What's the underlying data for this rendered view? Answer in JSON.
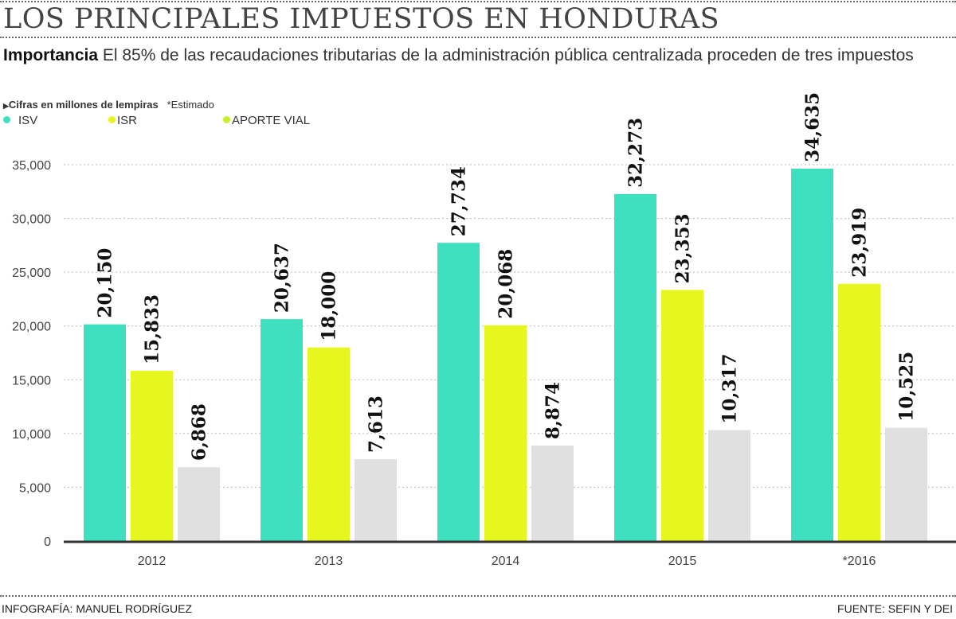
{
  "header": {
    "title": "LOS PRINCIPALES IMPUESTOS EN HONDURAS",
    "subtitle_lead": "Importancia",
    "subtitle_text": "El 85% de las recaudaciones tributarias de la administración pública centralizada proceden de tres impuestos",
    "note_units": "Cifras en millones de lempiras",
    "note_estimate": "*Estimado"
  },
  "footer": {
    "credit": "INFOGRAFÍA: MANUEL RODRÍGUEZ",
    "source": "FUENTE: SEFIN Y DEI"
  },
  "chart_data": {
    "type": "bar",
    "title": "LOS PRINCIPALES IMPUESTOS EN HONDURAS",
    "categories": [
      "2012",
      "2013",
      "2014",
      "2015",
      "*2016"
    ],
    "series": [
      {
        "name": "ISV",
        "color": "#3ee0bf",
        "values": [
          20150,
          20637,
          27734,
          32273,
          34635
        ],
        "labels": [
          "20,150",
          "20,637",
          "27,734",
          "32,273",
          "34,635"
        ]
      },
      {
        "name": "ISR",
        "color": "#e5f71e",
        "values": [
          15833,
          18000,
          20068,
          23353,
          23919
        ],
        "labels": [
          "15,833",
          "18,000",
          "20,068",
          "23,353",
          "23,919"
        ]
      },
      {
        "name": "APORTE VIAL",
        "color": "#e0e0e0",
        "legend_color": "#c9ef2a",
        "values": [
          6868,
          7613,
          8874,
          10317,
          10525
        ],
        "labels": [
          "6,868",
          "7,613",
          "8,874",
          "10,317",
          "10,525"
        ]
      }
    ],
    "yticks": [
      "0",
      "5,000",
      "10,000",
      "15,000",
      "20,000",
      "25,000",
      "30,000",
      "35,000"
    ],
    "ylim": [
      0,
      35000
    ],
    "grid": true,
    "legend": "top-left"
  }
}
